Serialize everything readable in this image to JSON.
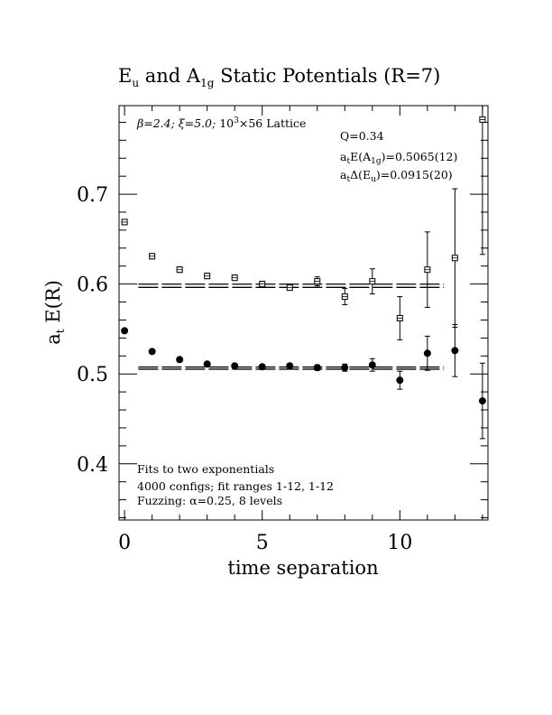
{
  "chart_data": {
    "type": "scatter",
    "title": {
      "main": "E",
      "sub_main": "u",
      "and": " and A",
      "sub_a": "1g",
      "rest": " Static Potentials (R=7)"
    },
    "xlabel": "time separation",
    "ylabel": {
      "main": "a",
      "sub": "t",
      "rest": " E(R)"
    },
    "xlim": [
      -0.2,
      13.2
    ],
    "ylim": [
      0.3375,
      0.7985
    ],
    "xticks": [
      0,
      5,
      10
    ],
    "yticks": [
      0.4,
      0.5,
      0.6,
      0.7
    ],
    "xtick_labels": [
      "0",
      "5",
      "10"
    ],
    "ytick_labels": [
      "0.4",
      "0.5",
      "0.6",
      "0.7"
    ],
    "annotations": {
      "lattice": {
        "beta": "β=2.4; ",
        "xi": "ξ=5.0; ",
        "size": "10",
        "size_sup": "3",
        "rest": "×56 Lattice"
      },
      "q": "Q=0.34",
      "e_a1g": {
        "a": "a",
        "a_sub": "t",
        "mid": "E(A",
        "sub": "1g",
        "rest": ")=0.5065(12)"
      },
      "de_eu": {
        "a": "a",
        "a_sub": "t",
        "mid": "Δ(E",
        "sub": "u",
        "rest": ")=0.0915(20)"
      },
      "fits": "Fits to two exponentials",
      "configs": "4000 configs; fit ranges 1-12, 1-12",
      "fuzzing": "Fuzzing: α=0.25, 8 levels"
    },
    "series": [
      {
        "marker": "open-square",
        "points": [
          {
            "x": 0,
            "y": 0.669,
            "err": 0.003
          },
          {
            "x": 1,
            "y": 0.631,
            "err": 0.003
          },
          {
            "x": 2,
            "y": 0.616,
            "err": 0.003
          },
          {
            "x": 3,
            "y": 0.609,
            "err": 0.003
          },
          {
            "x": 4,
            "y": 0.607,
            "err": 0.003
          },
          {
            "x": 5,
            "y": 0.6,
            "err": 0.003
          },
          {
            "x": 6,
            "y": 0.596,
            "err": 0.003
          },
          {
            "x": 7,
            "y": 0.603,
            "err": 0.005
          },
          {
            "x": 8,
            "y": 0.586,
            "err": 0.009
          },
          {
            "x": 9,
            "y": 0.603,
            "err": 0.014
          },
          {
            "x": 10,
            "y": 0.562,
            "err": 0.024
          },
          {
            "x": 11,
            "y": 0.616,
            "err": 0.042
          },
          {
            "x": 12,
            "y": 0.629,
            "err": 0.077
          },
          {
            "x": 13,
            "y": 0.783,
            "err": 0.15
          }
        ]
      },
      {
        "marker": "filled-circle",
        "points": [
          {
            "x": 0,
            "y": 0.548,
            "err": 0.002
          },
          {
            "x": 1,
            "y": 0.525,
            "err": 0.002
          },
          {
            "x": 2,
            "y": 0.516,
            "err": 0.002
          },
          {
            "x": 3,
            "y": 0.511,
            "err": 0.002
          },
          {
            "x": 4,
            "y": 0.509,
            "err": 0.002
          },
          {
            "x": 5,
            "y": 0.508,
            "err": 0.002
          },
          {
            "x": 6,
            "y": 0.509,
            "err": 0.002
          },
          {
            "x": 7,
            "y": 0.507,
            "err": 0.003
          },
          {
            "x": 8,
            "y": 0.507,
            "err": 0.004
          },
          {
            "x": 9,
            "y": 0.51,
            "err": 0.007
          },
          {
            "x": 10,
            "y": 0.493,
            "err": 0.01
          },
          {
            "x": 11,
            "y": 0.523,
            "err": 0.019
          },
          {
            "x": 12,
            "y": 0.526,
            "err": 0.029
          },
          {
            "x": 13,
            "y": 0.47,
            "err": 0.042
          }
        ]
      }
    ],
    "fits": [
      {
        "x_range": [
          0.5,
          11.6
        ],
        "y": 0.5981,
        "err": 0.0018
      },
      {
        "x_range": [
          0.5,
          11.6
        ],
        "y": 0.5065,
        "err": 0.0012
      }
    ]
  }
}
